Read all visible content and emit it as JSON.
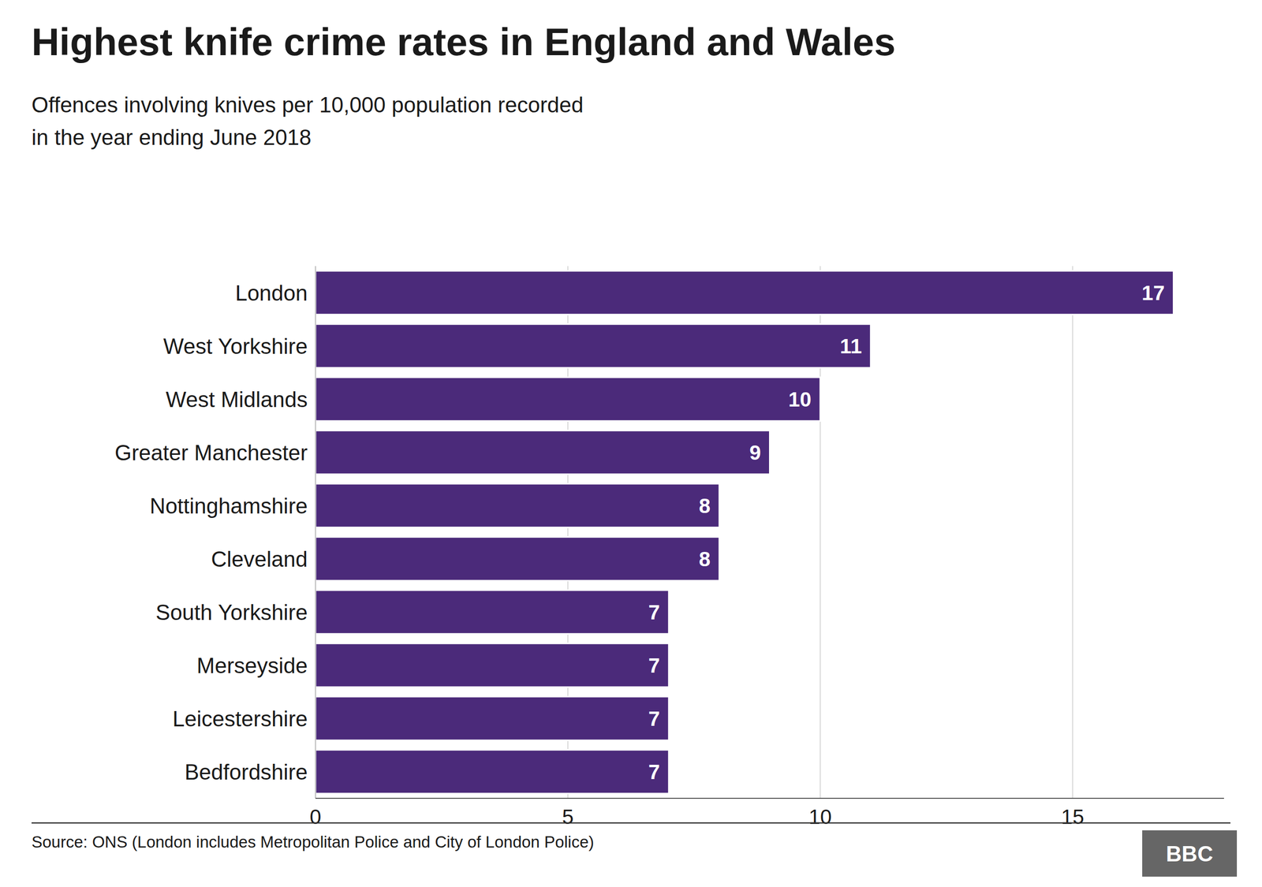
{
  "chart_data": {
    "type": "bar",
    "orientation": "horizontal",
    "title": "Highest knife crime rates in England and Wales",
    "subtitle": "Offences involving knives per 10,000 population recorded\nin the year ending June 2018",
    "categories": [
      "London",
      "West Yorkshire",
      "West Midlands",
      "Greater Manchester",
      "Nottinghamshire",
      "Cleveland",
      "South Yorkshire",
      "Merseyside",
      "Leicestershire",
      "Bedfordshire"
    ],
    "values": [
      17,
      11,
      10,
      9,
      8,
      8,
      7,
      7,
      7,
      7
    ],
    "color": "#4b2a7a",
    "xlim": [
      0,
      18
    ],
    "xticks": [
      0,
      5,
      10,
      15
    ],
    "grid": true,
    "data_labels": true,
    "annotations": [
      "Source: ONS (London includes Metropolitan Police and City of London Police)",
      "BBC"
    ]
  }
}
